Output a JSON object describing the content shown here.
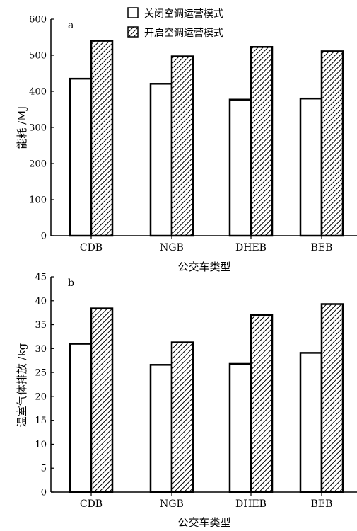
{
  "chart_data": [
    {
      "type": "bar",
      "panel_label": "a",
      "categories": [
        "CDB",
        "NGB",
        "DHEB",
        "BEB"
      ],
      "series": [
        {
          "name": "关闭空调运营模式",
          "values": [
            435,
            421,
            377,
            380
          ]
        },
        {
          "name": "开启空调运营模式",
          "values": [
            540,
            497,
            523,
            511
          ]
        }
      ],
      "xlabel": "公交车类型",
      "ylabel": "能耗 /MJ",
      "ylim": [
        0,
        600
      ],
      "yticks": [
        0,
        100,
        200,
        300,
        400,
        500,
        600
      ],
      "grid": false,
      "legend": "top"
    },
    {
      "type": "bar",
      "panel_label": "b",
      "categories": [
        "CDB",
        "NGB",
        "DHEB",
        "BEB"
      ],
      "series": [
        {
          "name": "关闭空调运营模式",
          "values": [
            31.0,
            26.6,
            26.8,
            29.1
          ]
        },
        {
          "name": "开启空调运营模式",
          "values": [
            38.4,
            31.3,
            37.0,
            39.3
          ]
        }
      ],
      "xlabel": "公交车类型",
      "ylabel": "温室气体排放 /kg",
      "ylim": [
        0,
        45
      ],
      "yticks": [
        0,
        5,
        10,
        15,
        20,
        25,
        30,
        35,
        40,
        45
      ],
      "grid": false
    }
  ]
}
